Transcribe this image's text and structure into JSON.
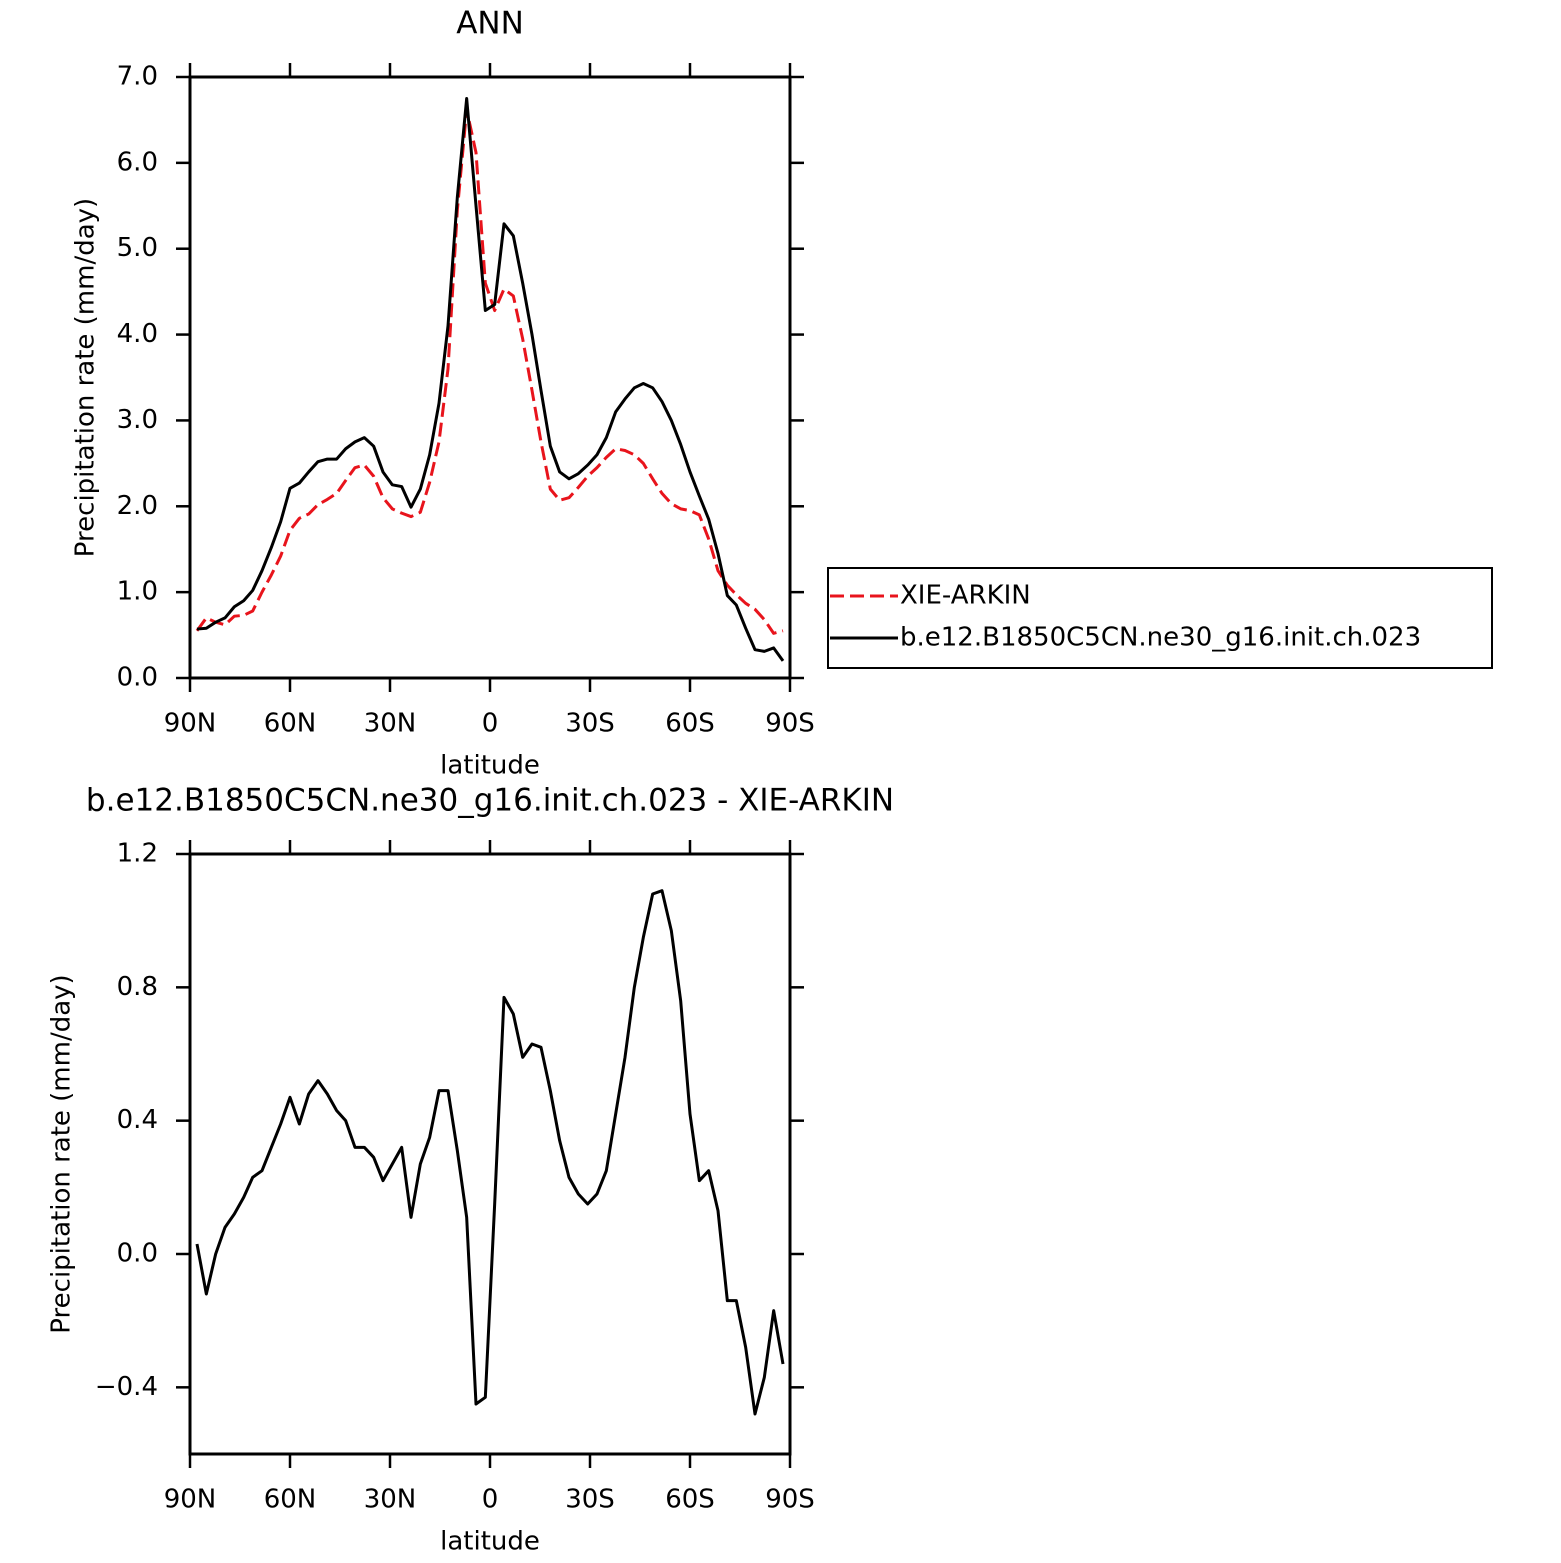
{
  "chart_data": [
    {
      "type": "line",
      "title": "ANN",
      "xlabel": "latitude",
      "ylabel": "Precipitation rate (mm/day)",
      "x": [
        87.9,
        85.1,
        82.3,
        79.5,
        76.7,
        73.9,
        71.2,
        68.4,
        65.6,
        62.8,
        60.0,
        57.2,
        54.4,
        51.6,
        48.8,
        46.0,
        43.3,
        40.5,
        37.7,
        34.9,
        32.1,
        29.3,
        26.5,
        23.7,
        20.9,
        18.1,
        15.3,
        12.6,
        9.8,
        7.0,
        4.2,
        1.4,
        -1.4,
        -4.2,
        -7.0,
        -9.8,
        -12.6,
        -15.3,
        -18.1,
        -20.9,
        -23.7,
        -26.5,
        -29.3,
        -32.1,
        -34.9,
        -37.7,
        -40.5,
        -43.3,
        -46.0,
        -48.8,
        -51.6,
        -54.4,
        -57.2,
        -60.0,
        -62.8,
        -65.6,
        -68.4,
        -71.2,
        -73.9,
        -76.7,
        -79.5,
        -82.3,
        -85.1,
        -87.9
      ],
      "series": [
        {
          "name": "XIE-ARKIN",
          "color": "#e8141c",
          "dashed": true,
          "values": [
            0.55,
            0.7,
            0.65,
            0.62,
            0.72,
            0.73,
            0.78,
            1.0,
            1.2,
            1.42,
            1.72,
            1.86,
            1.91,
            2.02,
            2.08,
            2.15,
            2.3,
            2.45,
            2.48,
            2.35,
            2.1,
            1.97,
            1.92,
            1.88,
            1.93,
            2.28,
            2.75,
            3.6,
            5.45,
            6.62,
            6.12,
            4.6,
            4.28,
            4.53,
            4.45,
            3.95,
            3.35,
            2.75,
            2.2,
            2.07,
            2.1,
            2.22,
            2.35,
            2.45,
            2.57,
            2.67,
            2.65,
            2.6,
            2.5,
            2.32,
            2.15,
            2.03,
            1.97,
            1.95,
            1.9,
            1.62,
            1.25,
            1.08,
            0.97,
            0.87,
            0.8,
            0.68,
            0.52,
            0.55
          ]
        },
        {
          "name": "b.e12.B1850C5CN.ne30_g16.init.ch.023",
          "color": "#000000",
          "dashed": false,
          "values": [
            0.57,
            0.58,
            0.65,
            0.7,
            0.83,
            0.9,
            1.02,
            1.25,
            1.52,
            1.82,
            2.21,
            2.27,
            2.4,
            2.52,
            2.55,
            2.55,
            2.67,
            2.75,
            2.8,
            2.7,
            2.4,
            2.25,
            2.23,
            1.99,
            2.2,
            2.6,
            3.2,
            4.1,
            5.6,
            6.75,
            5.5,
            4.28,
            4.35,
            5.29,
            5.15,
            4.6,
            4.0,
            3.35,
            2.7,
            2.4,
            2.32,
            2.38,
            2.48,
            2.6,
            2.8,
            3.1,
            3.25,
            3.38,
            3.43,
            3.38,
            3.22,
            3.0,
            2.72,
            2.4,
            2.12,
            1.85,
            1.45,
            0.96,
            0.85,
            0.58,
            0.33,
            0.31,
            0.35,
            0.2
          ]
        }
      ],
      "xlim": [
        90,
        -90
      ],
      "xticks": [
        {
          "value": 90,
          "label": "90N"
        },
        {
          "value": 60,
          "label": "60N"
        },
        {
          "value": 30,
          "label": "30N"
        },
        0,
        {
          "value": -30,
          "label": "30S"
        },
        {
          "value": -60,
          "label": "60S"
        },
        {
          "value": -90,
          "label": "90S"
        }
      ],
      "ylim": [
        0,
        7
      ],
      "yticks": [
        {
          "value": 0,
          "label": "0.0"
        },
        {
          "value": 1,
          "label": "1.0"
        },
        {
          "value": 2,
          "label": "2.0"
        },
        {
          "value": 3,
          "label": "3.0"
        },
        {
          "value": 4,
          "label": "4.0"
        },
        {
          "value": 5,
          "label": "5.0"
        },
        {
          "value": 6,
          "label": "6.0"
        },
        {
          "value": 7,
          "label": "7.0"
        }
      ],
      "legend": "outside-right"
    },
    {
      "type": "line",
      "title": "b.e12.B1850C5CN.ne30_g16.init.ch.023 - XIE-ARKIN",
      "xlabel": "latitude",
      "ylabel": "Precipitation rate (mm/day)",
      "x": [
        87.9,
        85.1,
        82.3,
        79.5,
        76.7,
        73.9,
        71.2,
        68.4,
        65.6,
        62.8,
        60.0,
        57.2,
        54.4,
        51.6,
        48.8,
        46.0,
        43.3,
        40.5,
        37.7,
        34.9,
        32.1,
        29.3,
        26.5,
        23.7,
        20.9,
        18.1,
        15.3,
        12.6,
        9.8,
        7.0,
        4.2,
        1.4,
        -1.4,
        -4.2,
        -7.0,
        -9.8,
        -12.6,
        -15.3,
        -18.1,
        -20.9,
        -23.7,
        -26.5,
        -29.3,
        -32.1,
        -34.9,
        -37.7,
        -40.5,
        -43.3,
        -46.0,
        -48.8,
        -51.6,
        -54.4,
        -57.2,
        -60.0,
        -62.8,
        -65.6,
        -68.4,
        -71.2,
        -73.9,
        -76.7,
        -79.5,
        -82.3,
        -85.1,
        -87.9
      ],
      "color": "#000000",
      "values": [
        0.03,
        -0.12,
        0.0,
        0.08,
        0.12,
        0.17,
        0.23,
        0.25,
        0.32,
        0.39,
        0.47,
        0.39,
        0.48,
        0.52,
        0.48,
        0.43,
        0.4,
        0.32,
        0.32,
        0.29,
        0.22,
        0.27,
        0.32,
        0.11,
        0.27,
        0.35,
        0.49,
        0.49,
        0.31,
        0.11,
        -0.45,
        -0.43,
        0.15,
        0.77,
        0.72,
        0.59,
        0.63,
        0.62,
        0.49,
        0.34,
        0.23,
        0.18,
        0.15,
        0.18,
        0.25,
        0.42,
        0.59,
        0.8,
        0.95,
        1.08,
        1.09,
        0.97,
        0.76,
        0.42,
        0.22,
        0.25,
        0.13,
        -0.14,
        -0.14,
        -0.28,
        -0.48,
        -0.37,
        -0.17,
        -0.33
      ],
      "xlim": [
        90,
        -90
      ],
      "xticks": [
        {
          "value": 90,
          "label": "90N"
        },
        {
          "value": 60,
          "label": "60N"
        },
        {
          "value": 30,
          "label": "30N"
        },
        0,
        {
          "value": -30,
          "label": "30S"
        },
        {
          "value": -60,
          "label": "60S"
        },
        {
          "value": -90,
          "label": "90S"
        }
      ],
      "ylim": [
        -0.6,
        1.2
      ],
      "yticks": [
        {
          "value": -0.4,
          "label": "−0.4"
        },
        {
          "value": 0,
          "label": "0.0"
        },
        {
          "value": 0.4,
          "label": "0.4"
        },
        {
          "value": 0.8,
          "label": "0.8"
        },
        {
          "value": 1.2,
          "label": "1.2"
        }
      ]
    }
  ]
}
